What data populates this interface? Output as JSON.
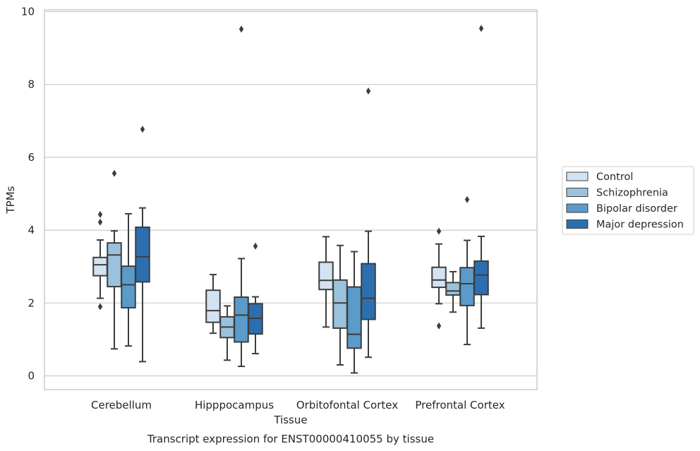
{
  "chart_data": {
    "type": "box",
    "title": "Transcript expression for ENST00000410055 by tissue",
    "xlabel": "Tissue",
    "ylabel": "TPMs",
    "ylim": [
      -0.4,
      10.05
    ],
    "yticks": [
      0,
      2,
      4,
      6,
      8,
      10
    ],
    "grid": "horizontal",
    "legend_position": "right",
    "categories": [
      "Cerebellum",
      "Hipppocampus",
      "Orbitofontal Cortex",
      "Prefrontal Cortex"
    ],
    "series": [
      {
        "name": "Control",
        "color": "#d4e3f1",
        "boxes": [
          {
            "whislo": 2.13,
            "q1": 2.75,
            "med": 3.05,
            "q3": 3.25,
            "whishi": 3.73,
            "fliers": [
              4.43,
              4.22,
              1.9
            ]
          },
          {
            "whislo": 1.17,
            "q1": 1.47,
            "med": 1.79,
            "q3": 2.35,
            "whishi": 2.78,
            "fliers": []
          },
          {
            "whislo": 1.34,
            "q1": 2.37,
            "med": 2.62,
            "q3": 3.12,
            "whishi": 3.82,
            "fliers": []
          },
          {
            "whislo": 1.98,
            "q1": 2.43,
            "med": 2.63,
            "q3": 2.98,
            "whishi": 3.62,
            "fliers": [
              3.97,
              1.37
            ]
          }
        ]
      },
      {
        "name": "Schizophrenia",
        "color": "#9ac2dc",
        "boxes": [
          {
            "whislo": 0.74,
            "q1": 2.45,
            "med": 3.32,
            "q3": 3.65,
            "whishi": 3.98,
            "fliers": [
              5.56
            ]
          },
          {
            "whislo": 0.43,
            "q1": 1.05,
            "med": 1.34,
            "q3": 1.62,
            "whishi": 1.92,
            "fliers": []
          },
          {
            "whislo": 0.3,
            "q1": 1.31,
            "med": 2.0,
            "q3": 2.63,
            "whishi": 3.58,
            "fliers": []
          },
          {
            "whislo": 1.75,
            "q1": 2.22,
            "med": 2.33,
            "q3": 2.56,
            "whishi": 2.86,
            "fliers": []
          }
        ]
      },
      {
        "name": "Bipolar disorder",
        "color": "#5a9bc9",
        "boxes": [
          {
            "whislo": 0.82,
            "q1": 1.87,
            "med": 2.5,
            "q3": 3.01,
            "whishi": 4.45,
            "fliers": []
          },
          {
            "whislo": 0.26,
            "q1": 0.93,
            "med": 1.67,
            "q3": 2.16,
            "whishi": 3.22,
            "fliers": [
              9.52
            ]
          },
          {
            "whislo": 0.08,
            "q1": 0.76,
            "med": 1.14,
            "q3": 2.44,
            "whishi": 3.41,
            "fliers": []
          },
          {
            "whislo": 0.86,
            "q1": 1.93,
            "med": 2.53,
            "q3": 2.97,
            "whishi": 3.72,
            "fliers": [
              4.84
            ]
          }
        ]
      },
      {
        "name": "Major depression",
        "color": "#2b6fb0",
        "boxes": [
          {
            "whislo": 0.39,
            "q1": 2.58,
            "med": 3.27,
            "q3": 4.08,
            "whishi": 4.61,
            "fliers": [
              6.77
            ]
          },
          {
            "whislo": 0.61,
            "q1": 1.15,
            "med": 1.58,
            "q3": 1.98,
            "whishi": 2.17,
            "fliers": [
              3.56
            ]
          },
          {
            "whislo": 0.51,
            "q1": 1.55,
            "med": 2.13,
            "q3": 3.08,
            "whishi": 3.97,
            "fliers": [
              7.82
            ]
          },
          {
            "whislo": 1.31,
            "q1": 2.23,
            "med": 2.77,
            "q3": 3.15,
            "whishi": 3.83,
            "fliers": [
              9.54
            ]
          }
        ]
      }
    ]
  }
}
